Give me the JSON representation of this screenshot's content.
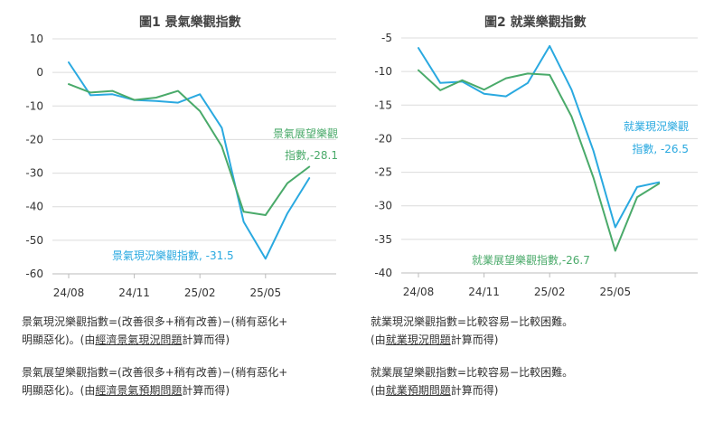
{
  "colors": {
    "current": "#2aa9e0",
    "expect": "#4aaa6a",
    "axis": "#bbbbbb",
    "grid": "#dcdcdc",
    "text": "#333333"
  },
  "chart_data": [
    {
      "type": "line",
      "title": "圖1  景氣樂觀指數",
      "yticks": [
        10,
        0,
        -10,
        -20,
        -30,
        -40,
        -50,
        -60
      ],
      "ylim": [
        -60,
        10
      ],
      "xticks": [
        "24/08",
        "24/11",
        "25/02",
        "25/05"
      ],
      "x": [
        "24/08",
        "24/09",
        "24/10",
        "24/11",
        "24/12",
        "25/01",
        "25/02",
        "25/03",
        "25/04",
        "25/05",
        "25/06",
        "25/07"
      ],
      "series": [
        {
          "name": "景氣現況樂觀指數",
          "color": "#2aa9e0",
          "values": [
            3,
            -6.8,
            -6.5,
            -8.2,
            -8.5,
            -9,
            -6.5,
            -16.5,
            -44.5,
            -55.5,
            -42,
            -31.5
          ]
        },
        {
          "name": "景氣展望樂觀指數",
          "color": "#4aaa6a",
          "values": [
            -3.5,
            -6,
            -5.5,
            -8.2,
            -7.5,
            -5.5,
            -11.5,
            -22,
            -41.5,
            -42.5,
            -33,
            -28.1
          ]
        }
      ],
      "annotations": [
        {
          "lines": [
            "景氣展望樂觀",
            "指數,-28.1"
          ],
          "color": "#4aaa6a"
        },
        {
          "lines": [
            "景氣現況樂觀指數, -31.5"
          ],
          "color": "#2aa9e0"
        }
      ]
    },
    {
      "type": "line",
      "title": "圖2  就業樂觀指數",
      "yticks": [
        -5,
        -10,
        -15,
        -20,
        -25,
        -30,
        -35,
        -40
      ],
      "ylim": [
        -40,
        -5
      ],
      "xticks": [
        "24/08",
        "24/11",
        "25/02",
        "25/05"
      ],
      "x": [
        "24/08",
        "24/09",
        "24/10",
        "24/11",
        "24/12",
        "25/01",
        "25/02",
        "25/03",
        "25/04",
        "25/05",
        "25/06",
        "25/07"
      ],
      "series": [
        {
          "name": "就業現況樂觀指數",
          "color": "#2aa9e0",
          "values": [
            -6.5,
            -11.7,
            -11.5,
            -13.3,
            -13.7,
            -11.7,
            -6.2,
            -12.7,
            -21.8,
            -33.2,
            -27.2,
            -26.5
          ]
        },
        {
          "name": "就業展望樂觀指數",
          "color": "#4aaa6a",
          "values": [
            -9.8,
            -12.8,
            -11.3,
            -12.7,
            -11,
            -10.3,
            -10.5,
            -16.7,
            -25.8,
            -36.7,
            -28.7,
            -26.7
          ]
        }
      ],
      "annotations": [
        {
          "lines": [
            "就業現況樂觀",
            "指數, -26.5"
          ],
          "color": "#2aa9e0"
        },
        {
          "lines": [
            "就業展望樂觀指數,-26.7"
          ],
          "color": "#4aaa6a"
        }
      ]
    }
  ],
  "notes": {
    "left": {
      "n1": {
        "a": "景氣現況樂觀指數=(改善很多+稍有改善)−(稍有惡化+",
        "b": "明顯惡化)。(由",
        "c": "經濟景氣現況問題",
        "d": "計算而得)"
      },
      "n2": {
        "a": "景氣展望樂觀指數=(改善很多+稍有改善)−(稍有惡化+",
        "b": "明顯惡化)。(由",
        "c": "經濟景氣預期問題",
        "d": "計算而得)"
      }
    },
    "right": {
      "n1": {
        "a": "就業現況樂觀指數=比較容易−比較困難。",
        "b": "(由",
        "c": "就業現況問題",
        "d": "計算而得)"
      },
      "n2": {
        "a": "就業展望樂觀指數=比較容易−比較困難。",
        "b": "(由",
        "c": "就業預期問題",
        "d": "計算而得)"
      }
    }
  }
}
